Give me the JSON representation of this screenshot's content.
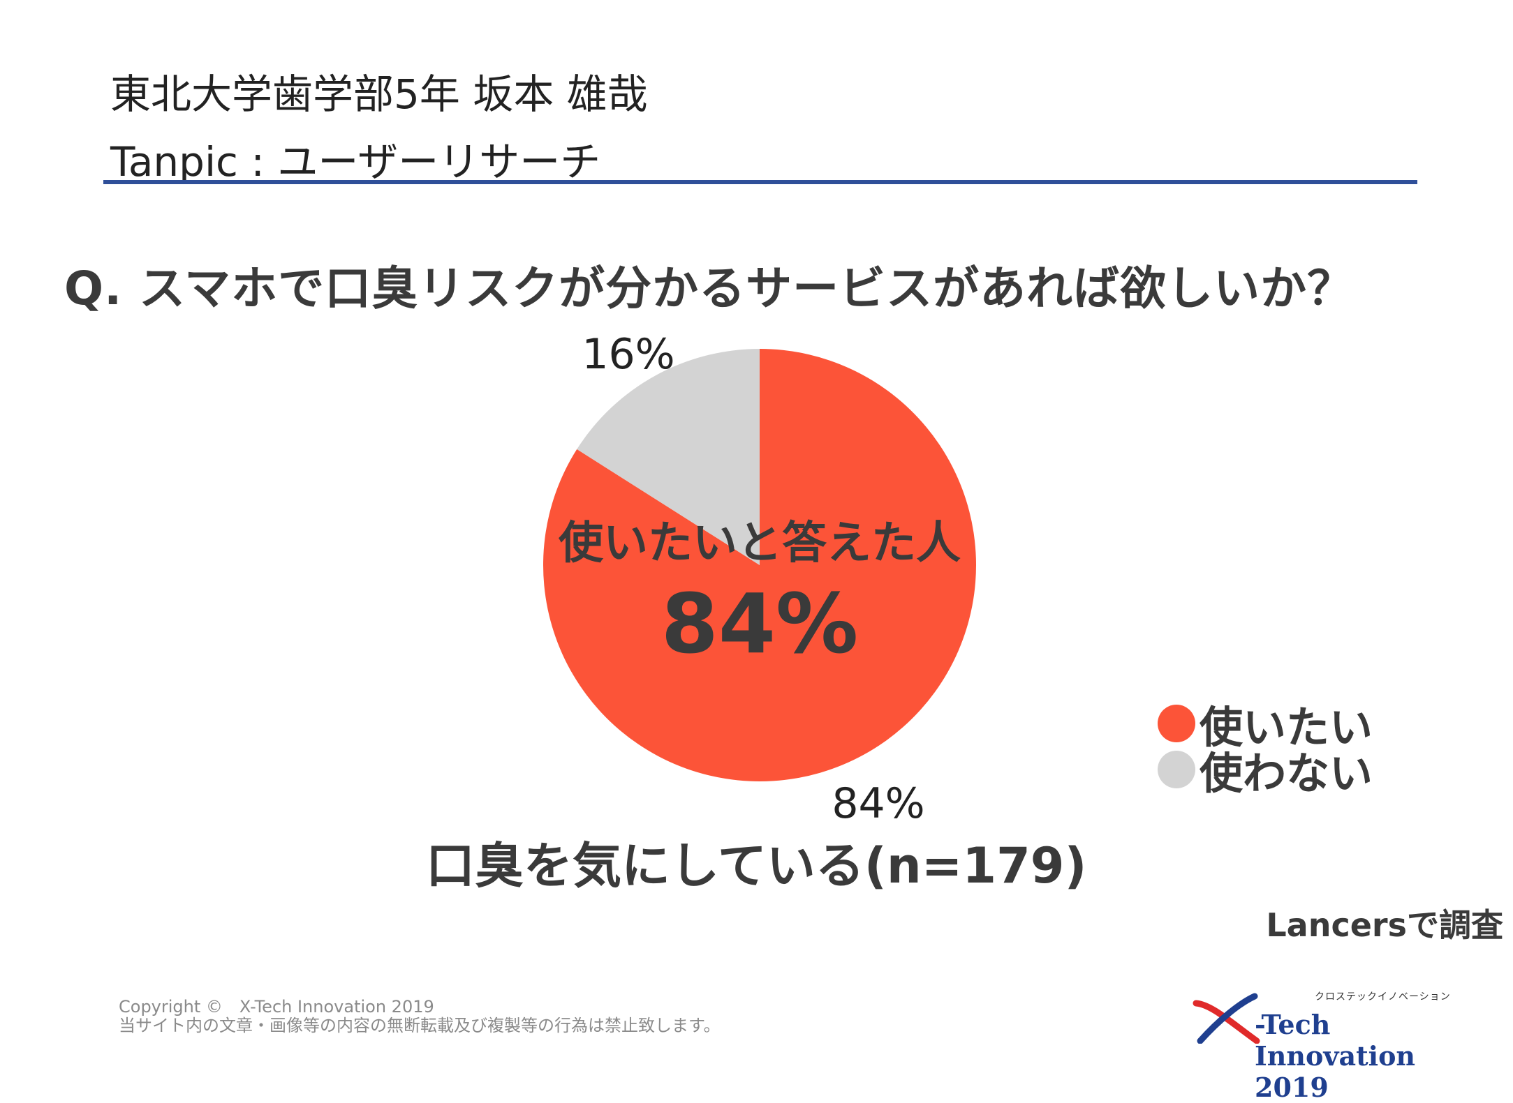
{
  "header": {
    "line1": "東北大学歯学部5年 坂本 雄哉",
    "line2": "Tanpic : ユーザーリサーチ"
  },
  "question": "Q. スマホで口臭リスクが分かるサービスがあれば欲しいか？",
  "chart_data": {
    "type": "pie",
    "categories": [
      "使いたい",
      "使わない"
    ],
    "values": [
      84,
      16
    ],
    "colors": [
      "#fc5438",
      "#d3d3d3"
    ],
    "slice_labels": [
      "84%",
      "16%"
    ],
    "center_caption": "使いたいと答えた人",
    "center_value": "84%",
    "legend_placement": "right"
  },
  "subtitle": "口臭を気にしている(n=179)",
  "source": "Lancersで調査",
  "footer": {
    "copyright_line1": "Copyright ©　X-Tech Innovation 2019",
    "copyright_line2": "当サイト内の文章・画像等の内容の無断転載及び複製等の行為は禁止致します。",
    "logo_kana": "クロステックイノベーション",
    "logo_text": "-Tech Innovation 2019",
    "logo_colors": {
      "x_red": "#e02a2a",
      "x_blue": "#1f3f8f"
    }
  }
}
